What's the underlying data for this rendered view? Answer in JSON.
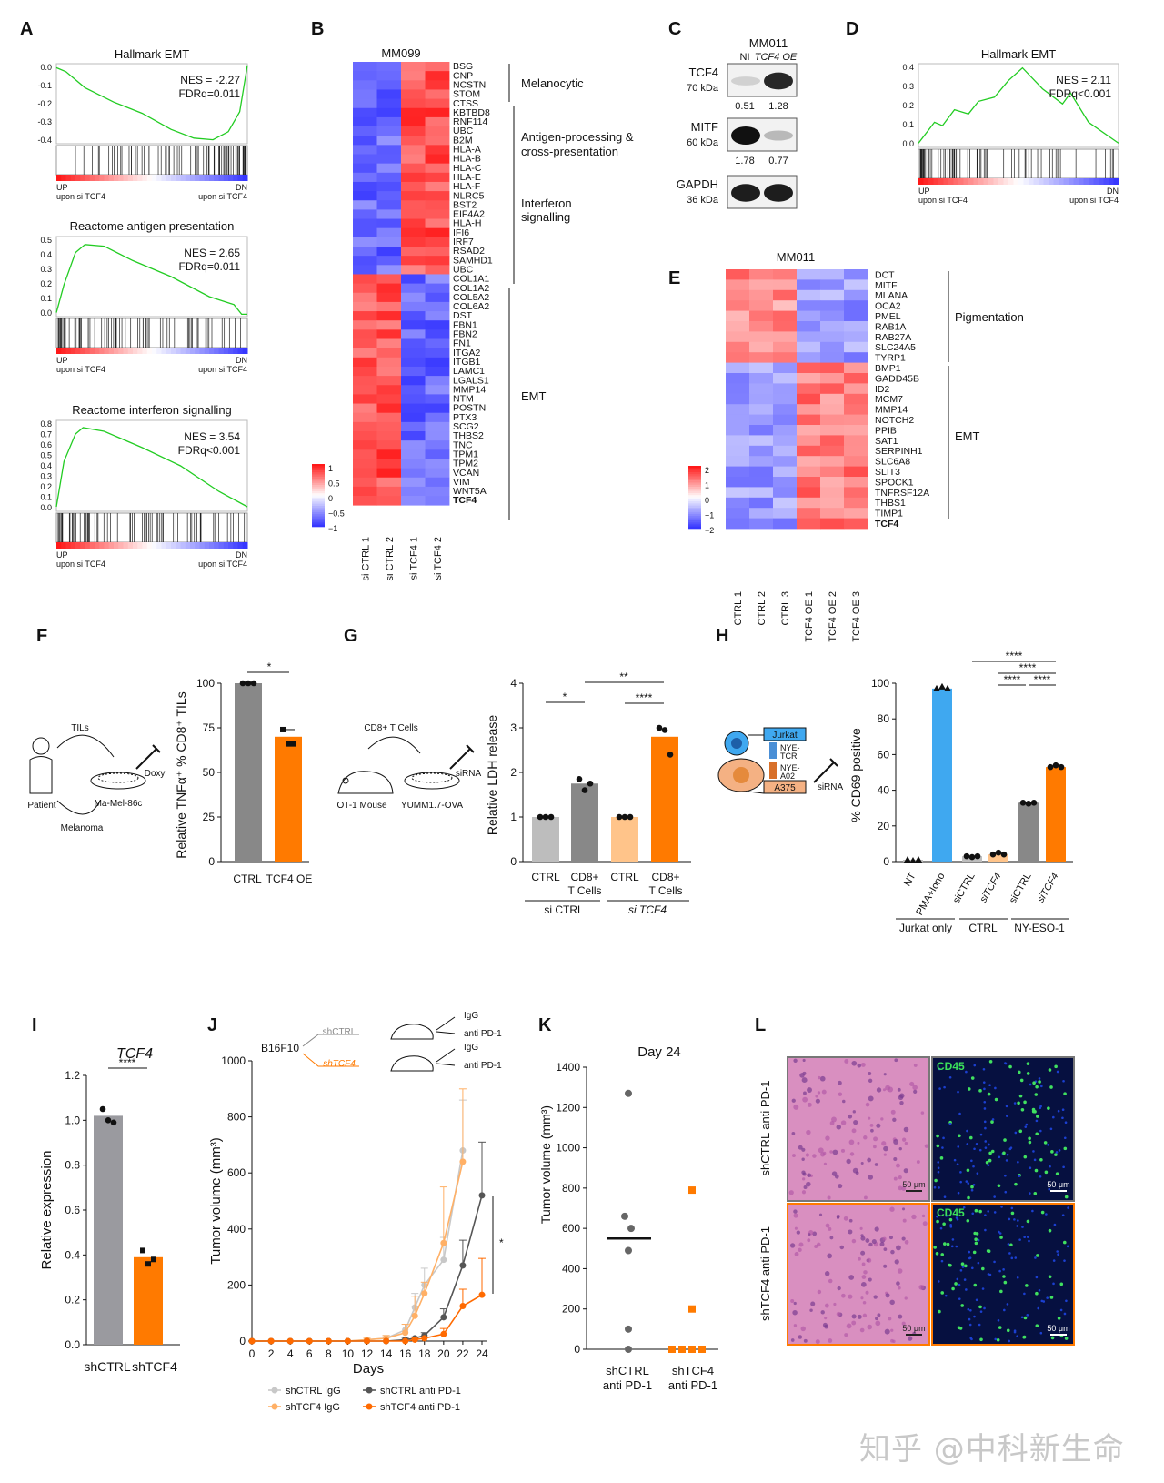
{
  "panels": {
    "A": "A",
    "B": "B",
    "C": "C",
    "D": "D",
    "E": "E",
    "F": "F",
    "G": "G",
    "H": "H",
    "I": "I",
    "J": "J",
    "K": "K",
    "L": "L"
  },
  "colors": {
    "gsea_line": "#22cc22",
    "grey": "#888888",
    "light_grey": "#bbbbbb",
    "orange": "#ff7a00",
    "light_orange": "#ffc48a",
    "blue": "#3fa8f0",
    "heat_red": "#ee1c1c",
    "heat_blue": "#3333ee"
  },
  "gsea": [
    {
      "title": "Hallmark EMT",
      "nes": "NES = -2.27",
      "fdr": "FDRq=0.011",
      "yticks": [
        "0.0",
        "-0.1",
        "-0.2",
        "-0.3",
        "-0.4"
      ],
      "up": "UP",
      "dn": "DN",
      "up_sub": "upon si TCF4",
      "dn_sub": "upon si TCF4"
    },
    {
      "title": "Reactome antigen presentation",
      "nes": "NES = 2.65",
      "fdr": "FDRq=0.011",
      "yticks": [
        "0.5",
        "0.4",
        "0.3",
        "0.2",
        "0.1",
        "0.0"
      ],
      "up": "UP",
      "dn": "DN",
      "up_sub": "upon si TCF4",
      "dn_sub": "upon si TCF4"
    },
    {
      "title": "Reactome interferon signalling",
      "nes": "NES = 3.54",
      "fdr": "FDRq<0.001",
      "yticks": [
        "0.8",
        "0.7",
        "0.6",
        "0.5",
        "0.4",
        "0.3",
        "0.2",
        "0.1",
        "0.0"
      ],
      "up": "UP",
      "dn": "DN",
      "up_sub": "upon si TCF4",
      "dn_sub": "upon si TCF4"
    },
    {
      "title": "Hallmark EMT",
      "nes": "NES = 2.11",
      "fdr": "FDRq<0.001",
      "yticks": [
        "0.4",
        "0.3",
        "0.2",
        "0.1",
        "0.0"
      ],
      "up": "UP",
      "dn": "DN",
      "up_sub": "upon si TCF4",
      "dn_sub": "upon si TCF4"
    }
  ],
  "heatmapB": {
    "title": "MM099",
    "genes": [
      "BSG",
      "CNP",
      "NCSTN",
      "STOM",
      "CTSS",
      "KBTBD8",
      "RNF114",
      "UBC",
      "B2M",
      "HLA-A",
      "HLA-B",
      "HLA-C",
      "HLA-E",
      "HLA-F",
      "NLRC5",
      "BST2",
      "EIF4A2",
      "HLA-H",
      "IFI6",
      "IRF7",
      "RSAD2",
      "SAMHD1",
      "UBC",
      "COL1A1",
      "COL1A2",
      "COL5A2",
      "COL6A2",
      "DST",
      "FBN1",
      "FBN2",
      "FN1",
      "ITGA2",
      "ITGB1",
      "LAMC1",
      "LGALS1",
      "MMP14",
      "NTM",
      "POSTN",
      "PTX3",
      "SCG2",
      "THBS2",
      "TNC",
      "TPM1",
      "TPM2",
      "VCAN",
      "VIM",
      "WNT5A",
      "TCF4"
    ],
    "samples": [
      "si CTRL 1",
      "si CTRL 2",
      "si TCF4 1",
      "si TCF4 2"
    ],
    "groups": [
      "Melanocytic",
      "Antigen-processing &",
      "cross-presentation",
      "Interferon",
      "signalling",
      "EMT"
    ],
    "scale": [
      "1",
      "0.5",
      "0",
      "−0.5",
      "−1"
    ]
  },
  "western": {
    "cell_line": "MM011",
    "lanes": [
      "NI",
      "TCF4 OE"
    ],
    "rows": [
      {
        "protein": "TCF4",
        "size": "70 kDa",
        "values": [
          "0.51",
          "1.28"
        ]
      },
      {
        "protein": "MITF",
        "size": "60 kDa",
        "values": [
          "1.78",
          "0.77"
        ]
      },
      {
        "protein": "GAPDH",
        "size": "36 kDa",
        "values": [
          "",
          ""
        ]
      }
    ]
  },
  "heatmapE": {
    "title": "MM011",
    "genes": [
      "DCT",
      "MITF",
      "MLANA",
      "OCA2",
      "PMEL",
      "RAB1A",
      "RAB27A",
      "SLC24A5",
      "TYRP1",
      "BMP1",
      "GADD45B",
      "ID2",
      "MCM7",
      "MMP14",
      "NOTCH2",
      "PPIB",
      "SAT1",
      "SERPINH1",
      "SLC6A8",
      "SLIT3",
      "SPOCK1",
      "TNFRSF12A",
      "THBS1",
      "TIMP1",
      "TCF4"
    ],
    "samples": [
      "CTRL 1",
      "CTRL 2",
      "CTRL 3",
      "TCF4 OE 1",
      "TCF4 OE 2",
      "TCF4 OE 3"
    ],
    "groups": [
      "Pigmentation",
      "EMT"
    ],
    "scale": [
      "2",
      "1",
      "0",
      "−1",
      "−2"
    ]
  },
  "panelF": {
    "schema": {
      "tils": "TILs",
      "doxy": "Doxy",
      "patient": "Patient",
      "melanoma": "Melanoma",
      "cells": "Ma-Mel-86c"
    },
    "ylabel": "Relative TNFα⁺ % CD8⁺ TILs",
    "sig": "*",
    "chart_data": {
      "type": "bar",
      "categories": [
        "CTRL",
        "TCF4 OE"
      ],
      "values": [
        100,
        70
      ],
      "ylim": [
        0,
        100
      ],
      "yticks": [
        "0",
        "25",
        "50",
        "75",
        "100"
      ],
      "points": [
        [
          100,
          100,
          100
        ],
        [
          74,
          66,
          66
        ]
      ]
    }
  },
  "panelG": {
    "schema": {
      "tcells": "CD8+ T Cells",
      "mouse": "OT-1 Mouse",
      "cells": "YUMM1.7-OVA",
      "sirna": "siRNA"
    },
    "ylabel": "Relative LDH release",
    "groups": [
      "si CTRL",
      "si TCF4"
    ],
    "sig": [
      "*",
      "**",
      "****"
    ],
    "chart_data": {
      "type": "bar",
      "categories": [
        "CTRL",
        "CD8+ T Cells",
        "CTRL",
        "CD8+ T Cells"
      ],
      "values": [
        1.0,
        1.75,
        1.0,
        2.8
      ],
      "ylim": [
        0,
        4
      ],
      "yticks": [
        "0",
        "1",
        "2",
        "3",
        "4"
      ],
      "points": [
        [
          1,
          1,
          1
        ],
        [
          1.85,
          1.6,
          1.75
        ],
        [
          1,
          1,
          1
        ],
        [
          3.0,
          2.95,
          2.4
        ]
      ]
    }
  },
  "panelH": {
    "schema": {
      "jurkat": "Jurkat",
      "tcr": "NYE-TCR",
      "a02": "NYE-A02",
      "a375": "A375",
      "sirna": "siRNA"
    },
    "ylabel": "% CD69 positive",
    "groups": [
      "Jurkat only",
      "CTRL",
      "NY-ESO-1"
    ],
    "sig": [
      "****",
      "****",
      "****",
      "****"
    ],
    "chart_data": {
      "type": "bar",
      "categories": [
        "NT",
        "PMA+Iono",
        "siCTRL",
        "siTCF4",
        "siCTRL",
        "siTCF4"
      ],
      "values": [
        1,
        97,
        3,
        4,
        33,
        53
      ],
      "ylim": [
        0,
        100
      ],
      "yticks": [
        "0",
        "20",
        "40",
        "60",
        "80",
        "100"
      ]
    }
  },
  "panelI": {
    "title": "TCF4",
    "ylabel": "Relative expression",
    "sig": "****",
    "chart_data": {
      "type": "bar",
      "categories": [
        "shCTRL",
        "shTCF4"
      ],
      "values": [
        1.02,
        0.39
      ],
      "ylim": [
        0,
        1.2
      ],
      "yticks": [
        "0.0",
        "0.2",
        "0.4",
        "0.6",
        "0.8",
        "1.0",
        "1.2"
      ],
      "points": [
        [
          1.05,
          1.0,
          0.99
        ],
        [
          0.42,
          0.36,
          0.38
        ]
      ]
    }
  },
  "panelJ": {
    "schema": {
      "b16": "B16F10",
      "sh1": "shCTRL",
      "sh2": "shTCF4",
      "igg": "IgG",
      "pd1": "anti PD-1"
    },
    "xlabel": "Days",
    "ylabel": "Tumor volume (mm³)",
    "sig": "*",
    "legend": [
      "shCTRL IgG",
      "shCTRL anti PD-1",
      "shTCF4 IgG",
      "shTCF4 anti PD-1"
    ],
    "chart_data": {
      "type": "line",
      "x": [
        0,
        2,
        4,
        6,
        8,
        10,
        12,
        14,
        16,
        17,
        18,
        20,
        22,
        24
      ],
      "ylim": [
        0,
        1000
      ],
      "yticks": [
        "0",
        "200",
        "400",
        "600",
        "800",
        "1000"
      ],
      "xticks": [
        "0",
        "2",
        "4",
        "6",
        "8",
        "10",
        "12",
        "14",
        "16",
        "18",
        "20",
        "22",
        "24"
      ],
      "series": [
        {
          "name": "shCTRL IgG",
          "color": "#c8c8c8",
          "x": [
            0,
            2,
            4,
            6,
            8,
            10,
            12,
            14,
            16,
            17,
            18,
            20,
            22
          ],
          "values": [
            0,
            0,
            0,
            0,
            0,
            0,
            5,
            10,
            40,
            120,
            200,
            290,
            680
          ],
          "err": [
            0,
            0,
            0,
            0,
            0,
            0,
            5,
            10,
            20,
            50,
            60,
            80,
            180
          ]
        },
        {
          "name": "shTCF4 IgG",
          "color": "#ffb066",
          "x": [
            0,
            2,
            4,
            6,
            8,
            10,
            12,
            14,
            16,
            17,
            18,
            20,
            22
          ],
          "values": [
            0,
            0,
            0,
            0,
            0,
            0,
            5,
            10,
            30,
            90,
            170,
            350,
            640
          ],
          "err": [
            0,
            0,
            0,
            0,
            0,
            0,
            5,
            10,
            30,
            70,
            40,
            200,
            260
          ]
        },
        {
          "name": "shCTRL anti PD-1",
          "color": "#555555",
          "x": [
            0,
            2,
            4,
            6,
            8,
            10,
            12,
            14,
            16,
            17,
            18,
            20,
            22,
            24
          ],
          "values": [
            0,
            0,
            0,
            0,
            0,
            0,
            0,
            0,
            5,
            10,
            20,
            85,
            270,
            520
          ],
          "err": [
            0,
            0,
            0,
            0,
            0,
            0,
            0,
            0,
            5,
            5,
            10,
            30,
            90,
            190
          ]
        },
        {
          "name": "shTCF4 anti PD-1",
          "color": "#ff6a00",
          "x": [
            0,
            2,
            4,
            6,
            8,
            10,
            12,
            14,
            16,
            17,
            18,
            20,
            22,
            24
          ],
          "values": [
            0,
            0,
            0,
            0,
            0,
            0,
            0,
            0,
            0,
            5,
            10,
            25,
            125,
            165
          ],
          "err": [
            0,
            0,
            0,
            0,
            0,
            0,
            0,
            0,
            0,
            5,
            5,
            20,
            60,
            130
          ]
        }
      ]
    }
  },
  "panelK": {
    "title": "Day 24",
    "ylabel": "Tumor volume (mm³)",
    "chart_data": {
      "type": "scatter",
      "categories": [
        "shCTRL anti PD-1",
        "shTCF4 anti PD-1"
      ],
      "ylim": [
        0,
        1400
      ],
      "yticks": [
        "0",
        "200",
        "400",
        "600",
        "800",
        "1000",
        "1200",
        "1400"
      ],
      "values": [
        [
          1270,
          660,
          600,
          490,
          100,
          0
        ],
        [
          790,
          200,
          0,
          0,
          0,
          0
        ]
      ],
      "medians": [
        550,
        0
      ]
    },
    "xlabels": [
      "shCTRL",
      "anti PD-1",
      "shTCF4",
      "anti PD-1"
    ]
  },
  "panelL": {
    "rows": [
      "shCTRL anti PD-1",
      "shTCF4 anti PD-1"
    ],
    "stain": "CD45",
    "scalebar": "50 μm"
  },
  "watermark": "知乎 @中科新生命"
}
